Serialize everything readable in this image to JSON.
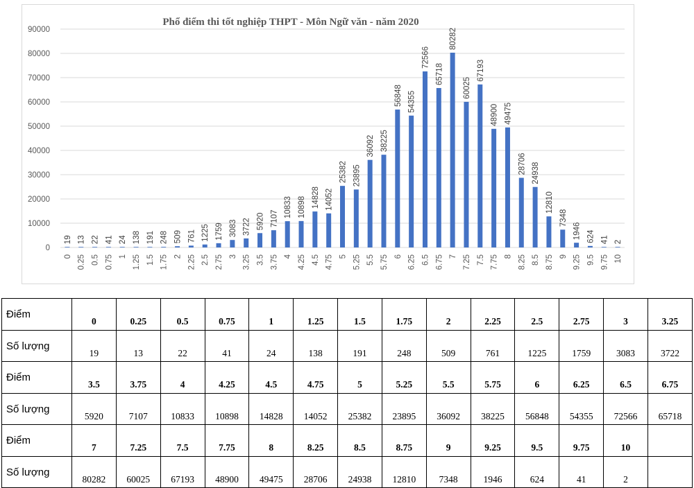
{
  "chart_data": {
    "type": "bar",
    "title": "Phổ điểm thi tốt nghiệp THPT - Môn Ngữ văn - năm 2020",
    "xlabel": "",
    "ylabel": "",
    "ylim": [
      0,
      90000
    ],
    "yticks": [
      0,
      10000,
      20000,
      30000,
      40000,
      50000,
      60000,
      70000,
      80000,
      90000
    ],
    "grid": true,
    "bar_color": "#4472c4",
    "categories": [
      "0",
      "0.25",
      "0.5",
      "0.75",
      "1",
      "1.25",
      "1.5",
      "1.75",
      "2",
      "2.25",
      "2.5",
      "2.75",
      "3",
      "3.25",
      "3.5",
      "3.75",
      "4",
      "4.25",
      "4.5",
      "4.75",
      "5",
      "5.25",
      "5.5",
      "5.75",
      "6",
      "6.25",
      "6.5",
      "6.75",
      "7",
      "7.25",
      "7.5",
      "7.75",
      "8",
      "8.25",
      "8.5",
      "8.75",
      "9",
      "9.25",
      "9.5",
      "9.75",
      "10"
    ],
    "values": [
      19,
      13,
      22,
      41,
      24,
      138,
      191,
      248,
      509,
      761,
      1225,
      1759,
      3083,
      3722,
      5920,
      7107,
      10833,
      10898,
      14828,
      14052,
      25382,
      23895,
      36092,
      38225,
      56848,
      54355,
      72566,
      65718,
      80282,
      60025,
      67193,
      48900,
      49475,
      28706,
      24938,
      12810,
      7348,
      1946,
      624,
      41,
      2
    ]
  },
  "table": {
    "score_label": "Điểm",
    "count_label": "Số lượng",
    "blocks": [
      {
        "scores": [
          "0",
          "0.25",
          "0.5",
          "0.75",
          "1",
          "1.25",
          "1.5",
          "1.75",
          "2",
          "2.25",
          "2.5",
          "2.75",
          "3",
          "3.25"
        ],
        "counts": [
          "19",
          "13",
          "22",
          "41",
          "24",
          "138",
          "191",
          "248",
          "509",
          "761",
          "1225",
          "1759",
          "3083",
          "3722"
        ]
      },
      {
        "scores": [
          "3.5",
          "3.75",
          "4",
          "4.25",
          "4.5",
          "4.75",
          "5",
          "5.25",
          "5.5",
          "5.75",
          "6",
          "6.25",
          "6.5",
          "6.75"
        ],
        "counts": [
          "5920",
          "7107",
          "10833",
          "10898",
          "14828",
          "14052",
          "25382",
          "23895",
          "36092",
          "38225",
          "56848",
          "54355",
          "72566",
          "65718"
        ]
      },
      {
        "scores": [
          "7",
          "7.25",
          "7.5",
          "7.75",
          "8",
          "8.25",
          "8.5",
          "8.75",
          "9",
          "9.25",
          "9.5",
          "9.75",
          "10",
          ""
        ],
        "counts": [
          "80282",
          "60025",
          "67193",
          "48900",
          "49475",
          "28706",
          "24938",
          "12810",
          "7348",
          "1946",
          "624",
          "41",
          "2",
          ""
        ]
      }
    ]
  }
}
